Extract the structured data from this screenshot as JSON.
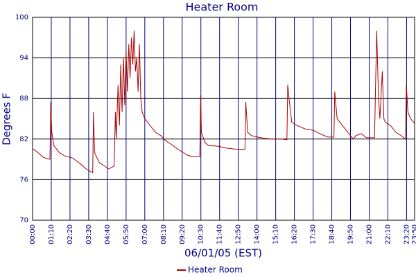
{
  "chart_data": {
    "type": "line",
    "title": "Heater Room",
    "x_label": "06/01/05 (EST)",
    "y_label": "Degrees F",
    "xlim": [
      "00:00",
      "23:50"
    ],
    "xticks": [
      "00:00",
      "01:10",
      "02:20",
      "03:30",
      "04:40",
      "05:50",
      "07:00",
      "08:10",
      "09:20",
      "10:30",
      "11:40",
      "12:50",
      "14:00",
      "15:10",
      "16:20",
      "17:30",
      "18:40",
      "19:50",
      "21:00",
      "22:10",
      "23:20",
      "23:50"
    ],
    "ylim": [
      70,
      100
    ],
    "yticks": [
      70,
      76,
      82,
      88,
      94,
      100
    ],
    "grid": true,
    "legend": "bottom",
    "x": [
      "00:00",
      "00:20",
      "00:40",
      "01:05",
      "01:08",
      "01:12",
      "01:20",
      "01:40",
      "02:00",
      "02:30",
      "03:00",
      "03:20",
      "03:45",
      "03:48",
      "03:52",
      "04:10",
      "04:30",
      "04:45",
      "05:05",
      "05:10",
      "05:13",
      "05:20",
      "05:25",
      "05:30",
      "05:35",
      "05:40",
      "05:45",
      "05:50",
      "05:55",
      "06:00",
      "06:05",
      "06:10",
      "06:15",
      "06:20",
      "06:25",
      "06:30",
      "06:35",
      "06:40",
      "06:45",
      "06:50",
      "07:00",
      "07:20",
      "07:40",
      "08:00",
      "08:20",
      "08:40",
      "09:00",
      "09:20",
      "09:40",
      "10:00",
      "10:26",
      "10:29",
      "10:32",
      "10:45",
      "11:00",
      "11:20",
      "11:40",
      "12:00",
      "12:20",
      "12:40",
      "13:15",
      "13:18",
      "13:25",
      "13:40",
      "14:00",
      "14:30",
      "15:00",
      "15:30",
      "15:52",
      "15:55",
      "16:00",
      "16:10",
      "16:30",
      "17:00",
      "17:30",
      "18:00",
      "18:25",
      "18:48",
      "18:51",
      "19:00",
      "19:20",
      "19:40",
      "20:00",
      "20:10",
      "20:30",
      "20:50",
      "21:20",
      "21:28",
      "21:35",
      "21:40",
      "21:49",
      "21:55",
      "22:00",
      "22:20",
      "22:40",
      "23:00",
      "23:16",
      "23:19",
      "23:25",
      "23:35",
      "23:50"
    ],
    "series": [
      {
        "name": "Heater Room",
        "color": "#aa0000",
        "values": [
          80.6,
          80.0,
          79.3,
          79.0,
          87.5,
          83,
          81,
          80,
          79.5,
          79.2,
          78.3,
          77.6,
          77.0,
          86,
          80,
          78.5,
          78,
          77.6,
          78,
          86,
          82,
          90,
          84,
          93,
          86,
          94,
          87,
          95,
          89,
          96,
          91,
          97,
          93,
          98,
          92,
          94,
          89,
          96,
          88,
          86,
          85,
          84,
          83,
          82.5,
          81.7,
          81.2,
          80.6,
          80.1,
          79.6,
          79.4,
          79.4,
          88.5,
          83,
          81.5,
          81,
          81,
          80.9,
          80.7,
          80.6,
          80.5,
          80.5,
          87.5,
          83,
          82.5,
          82.3,
          82.1,
          82,
          82,
          81.9,
          90,
          88,
          84.5,
          84,
          83.5,
          83.3,
          82.7,
          82.3,
          82.3,
          89,
          85,
          84,
          83,
          82,
          82.5,
          82.8,
          82.2,
          82.2,
          98,
          88,
          85,
          92,
          85,
          84.5,
          84,
          83,
          82.5,
          82,
          90,
          86,
          85,
          84.3
        ]
      }
    ]
  }
}
